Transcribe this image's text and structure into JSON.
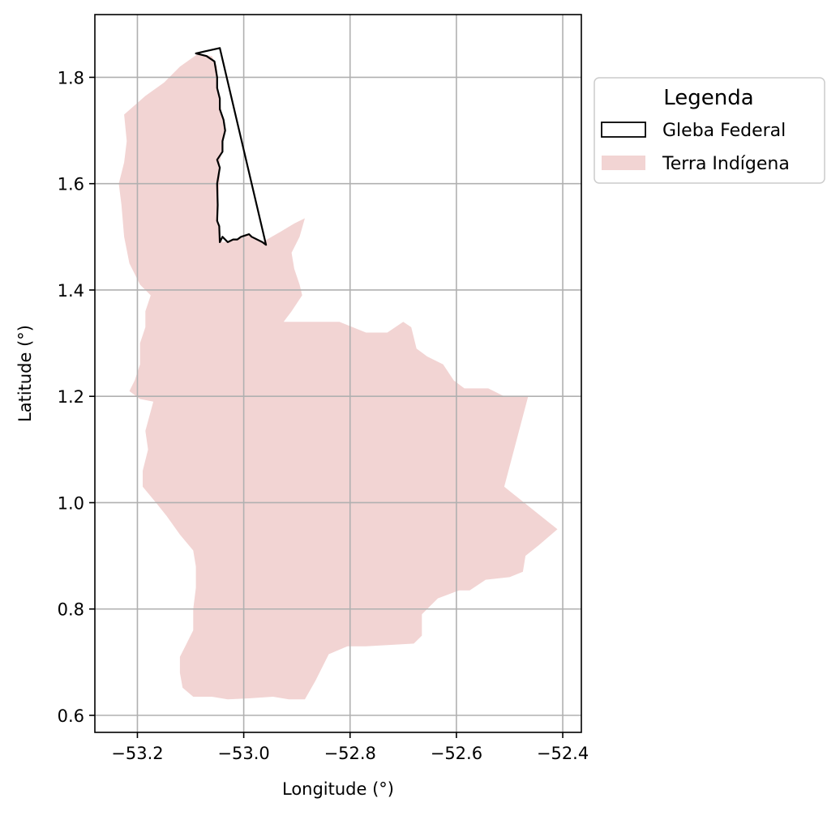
{
  "chart_data": {
    "type": "map",
    "xlabel": "Longitude (°)",
    "ylabel": "Latitude (°)",
    "xlim": [
      -53.28,
      -52.365
    ],
    "ylim": [
      0.568,
      1.918
    ],
    "xticks": [
      -53.2,
      -53.0,
      -52.8,
      -52.6,
      -52.4
    ],
    "xtick_labels": [
      "−53.2",
      "−53.0",
      "−52.8",
      "−52.6",
      "−52.4"
    ],
    "yticks": [
      0.6,
      0.8,
      1.0,
      1.2,
      1.4,
      1.6,
      1.8
    ],
    "ytick_labels": [
      "0.6",
      "0.8",
      "1.0",
      "1.2",
      "1.4",
      "1.6",
      "1.8"
    ],
    "grid": true,
    "legend": {
      "title": "Legenda",
      "placement": "outside-upper-right",
      "entries": [
        {
          "label": "Gleba Federal",
          "style": "outline",
          "color": "#000000"
        },
        {
          "label": "Terra Indígena",
          "style": "fill",
          "color": "#f2d4d3"
        }
      ]
    },
    "layers": [
      {
        "name": "Terra Indígena",
        "fill": "#f2d4d3",
        "polygon": [
          [
            -53.085,
            1.845
          ],
          [
            -53.06,
            1.84
          ],
          [
            -53.05,
            1.82
          ],
          [
            -53.05,
            1.79
          ],
          [
            -53.045,
            1.76
          ],
          [
            -53.04,
            1.72
          ],
          [
            -53.035,
            1.7
          ],
          [
            -53.04,
            1.67
          ],
          [
            -53.045,
            1.64
          ],
          [
            -53.045,
            1.61
          ],
          [
            -53.048,
            1.57
          ],
          [
            -53.048,
            1.53
          ],
          [
            -53.045,
            1.5
          ],
          [
            -53.04,
            1.49
          ],
          [
            -53.01,
            1.495
          ],
          [
            -52.99,
            1.505
          ],
          [
            -52.965,
            1.49
          ],
          [
            -52.93,
            1.51
          ],
          [
            -52.905,
            1.525
          ],
          [
            -52.885,
            1.535
          ],
          [
            -52.895,
            1.5
          ],
          [
            -52.91,
            1.47
          ],
          [
            -52.905,
            1.44
          ],
          [
            -52.895,
            1.41
          ],
          [
            -52.89,
            1.39
          ],
          [
            -52.91,
            1.36
          ],
          [
            -52.925,
            1.34
          ],
          [
            -52.88,
            1.34
          ],
          [
            -52.82,
            1.34
          ],
          [
            -52.77,
            1.32
          ],
          [
            -52.73,
            1.32
          ],
          [
            -52.7,
            1.34
          ],
          [
            -52.685,
            1.33
          ],
          [
            -52.675,
            1.29
          ],
          [
            -52.655,
            1.275
          ],
          [
            -52.625,
            1.26
          ],
          [
            -52.605,
            1.23
          ],
          [
            -52.585,
            1.215
          ],
          [
            -52.54,
            1.215
          ],
          [
            -52.51,
            1.2
          ],
          [
            -52.465,
            1.2
          ],
          [
            -52.51,
            1.03
          ],
          [
            -52.41,
            0.95
          ],
          [
            -52.445,
            0.92
          ],
          [
            -52.47,
            0.9
          ],
          [
            -52.475,
            0.87
          ],
          [
            -52.5,
            0.86
          ],
          [
            -52.545,
            0.855
          ],
          [
            -52.575,
            0.835
          ],
          [
            -52.595,
            0.835
          ],
          [
            -52.635,
            0.82
          ],
          [
            -52.665,
            0.79
          ],
          [
            -52.665,
            0.75
          ],
          [
            -52.68,
            0.735
          ],
          [
            -52.77,
            0.73
          ],
          [
            -52.805,
            0.73
          ],
          [
            -52.84,
            0.715
          ],
          [
            -52.865,
            0.665
          ],
          [
            -52.885,
            0.63
          ],
          [
            -52.915,
            0.63
          ],
          [
            -52.945,
            0.635
          ],
          [
            -52.99,
            0.632
          ],
          [
            -53.03,
            0.63
          ],
          [
            -53.06,
            0.635
          ],
          [
            -53.095,
            0.635
          ],
          [
            -53.115,
            0.652
          ],
          [
            -53.12,
            0.68
          ],
          [
            -53.12,
            0.71
          ],
          [
            -53.11,
            0.73
          ],
          [
            -53.095,
            0.76
          ],
          [
            -53.095,
            0.8
          ],
          [
            -53.09,
            0.84
          ],
          [
            -53.09,
            0.88
          ],
          [
            -53.095,
            0.91
          ],
          [
            -53.12,
            0.94
          ],
          [
            -53.145,
            0.975
          ],
          [
            -53.165,
            1.0
          ],
          [
            -53.19,
            1.03
          ],
          [
            -53.19,
            1.06
          ],
          [
            -53.18,
            1.1
          ],
          [
            -53.185,
            1.135
          ],
          [
            -53.17,
            1.19
          ],
          [
            -53.195,
            1.195
          ],
          [
            -53.215,
            1.21
          ],
          [
            -53.205,
            1.23
          ],
          [
            -53.195,
            1.26
          ],
          [
            -53.195,
            1.3
          ],
          [
            -53.185,
            1.33
          ],
          [
            -53.185,
            1.36
          ],
          [
            -53.175,
            1.39
          ],
          [
            -53.195,
            1.41
          ],
          [
            -53.205,
            1.43
          ],
          [
            -53.215,
            1.45
          ],
          [
            -53.225,
            1.5
          ],
          [
            -53.23,
            1.56
          ],
          [
            -53.235,
            1.6
          ],
          [
            -53.225,
            1.64
          ],
          [
            -53.22,
            1.68
          ],
          [
            -53.225,
            1.73
          ],
          [
            -53.185,
            1.765
          ],
          [
            -53.15,
            1.79
          ],
          [
            -53.12,
            1.82
          ]
        ]
      },
      {
        "name": "Gleba Federal",
        "stroke": "#000000",
        "polygon": [
          [
            -53.09,
            1.845
          ],
          [
            -53.045,
            1.855
          ],
          [
            -52.958,
            1.485
          ],
          [
            -52.965,
            1.49
          ],
          [
            -52.985,
            1.5
          ],
          [
            -52.99,
            1.505
          ],
          [
            -53.005,
            1.5
          ],
          [
            -53.012,
            1.495
          ],
          [
            -53.02,
            1.495
          ],
          [
            -53.03,
            1.49
          ],
          [
            -53.04,
            1.5
          ],
          [
            -53.045,
            1.49
          ],
          [
            -53.046,
            1.52
          ],
          [
            -53.05,
            1.53
          ],
          [
            -53.049,
            1.56
          ],
          [
            -53.05,
            1.6
          ],
          [
            -53.045,
            1.63
          ],
          [
            -53.05,
            1.645
          ],
          [
            -53.04,
            1.66
          ],
          [
            -53.04,
            1.68
          ],
          [
            -53.035,
            1.7
          ],
          [
            -53.038,
            1.72
          ],
          [
            -53.045,
            1.74
          ],
          [
            -53.045,
            1.76
          ],
          [
            -53.05,
            1.78
          ],
          [
            -53.05,
            1.8
          ],
          [
            -53.055,
            1.83
          ],
          [
            -53.07,
            1.84
          ]
        ]
      }
    ]
  }
}
